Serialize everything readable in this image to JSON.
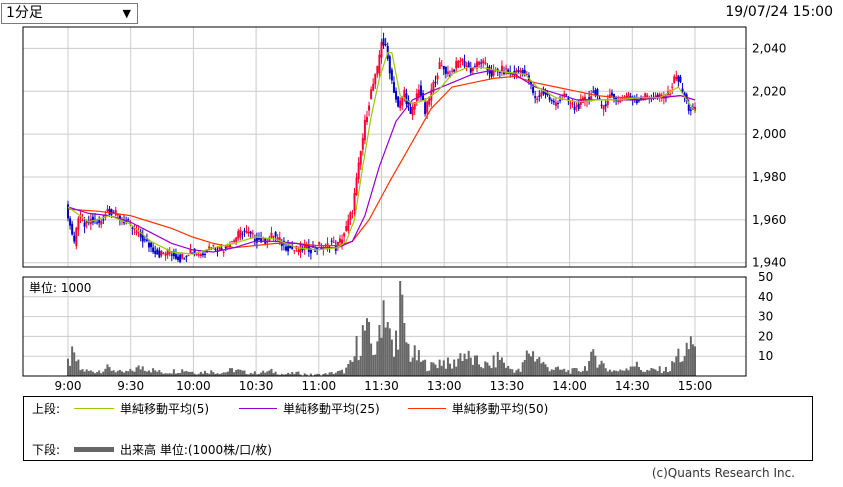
{
  "toolbar": {
    "interval_label": "1分足",
    "datetime": "19/07/24 15:00"
  },
  "legend": {
    "upper_prefix": "上段:",
    "lower_prefix": "下段:",
    "ma5_label": "単純移動平均(5)",
    "ma25_label": "単純移動平均(25)",
    "ma50_label": "単純移動平均(50)",
    "volume_label": "出来高 単位:(1000株/口/枚)"
  },
  "copyright": "(c)Quants Research Inc.",
  "colors": {
    "up": "#ff0033",
    "down": "#0000cc",
    "ma5": "#99cc00",
    "ma25": "#9900cc",
    "ma50": "#ff3300",
    "volume": "#666666",
    "grid": "#cccccc"
  },
  "chart_data": [
    {
      "type": "candlestick",
      "ylim": [
        1938,
        2050
      ],
      "yticks": [
        "2,040",
        "2,020",
        "2,000",
        "1,980",
        "1,960",
        "1,940"
      ],
      "ytick_values": [
        2040,
        2020,
        2000,
        1980,
        1960,
        1940
      ],
      "xticks": [
        "9:00",
        "9:30",
        "10:00",
        "10:30",
        "11:00",
        "11:30",
        "13:00",
        "13:30",
        "14:00",
        "14:30",
        "15:00"
      ],
      "price_path": [
        [
          0,
          1966
        ],
        [
          2,
          1958
        ],
        [
          4,
          1948
        ],
        [
          6,
          1962
        ],
        [
          9,
          1957
        ],
        [
          12,
          1960
        ],
        [
          16,
          1958
        ],
        [
          20,
          1965
        ],
        [
          25,
          1962
        ],
        [
          30,
          1958
        ],
        [
          35,
          1953
        ],
        [
          40,
          1948
        ],
        [
          45,
          1944
        ],
        [
          50,
          1945
        ],
        [
          55,
          1942
        ],
        [
          60,
          1946
        ],
        [
          65,
          1944
        ],
        [
          70,
          1948
        ],
        [
          75,
          1946
        ],
        [
          80,
          1950
        ],
        [
          85,
          1955
        ],
        [
          90,
          1952
        ],
        [
          95,
          1950
        ],
        [
          100,
          1953
        ],
        [
          105,
          1948
        ],
        [
          110,
          1946
        ],
        [
          115,
          1947
        ],
        [
          120,
          1946
        ],
        [
          122,
          1948
        ],
        [
          125,
          1947
        ],
        [
          128,
          1950
        ],
        [
          130,
          1947
        ],
        [
          132,
          1950
        ],
        [
          135,
          1956
        ],
        [
          138,
          1965
        ],
        [
          141,
          1985
        ],
        [
          144,
          2005
        ],
        [
          147,
          2020
        ],
        [
          150,
          2030
        ],
        [
          152,
          2044
        ],
        [
          154,
          2040
        ],
        [
          157,
          2025
        ],
        [
          160,
          2012
        ],
        [
          163,
          2020
        ],
        [
          166,
          2008
        ],
        [
          170,
          2022
        ],
        [
          173,
          2010
        ],
        [
          176,
          2020
        ],
        [
          180,
          2032
        ],
        [
          185,
          2028
        ],
        [
          190,
          2035
        ],
        [
          195,
          2030
        ],
        [
          200,
          2034
        ],
        [
          205,
          2028
        ],
        [
          210,
          2030
        ],
        [
          215,
          2028
        ],
        [
          220,
          2030
        ],
        [
          223,
          2025
        ],
        [
          226,
          2016
        ],
        [
          230,
          2020
        ],
        [
          235,
          2014
        ],
        [
          240,
          2018
        ],
        [
          245,
          2012
        ],
        [
          250,
          2016
        ],
        [
          255,
          2020
        ],
        [
          258,
          2012
        ],
        [
          262,
          2018
        ],
        [
          266,
          2016
        ],
        [
          270,
          2018
        ],
        [
          275,
          2016
        ],
        [
          280,
          2018
        ],
        [
          285,
          2017
        ],
        [
          290,
          2018
        ],
        [
          294,
          2028
        ],
        [
          297,
          2020
        ],
        [
          300,
          2012
        ],
        [
          302,
          2011
        ]
      ],
      "ma5_path": [
        [
          0,
          1966
        ],
        [
          10,
          1959
        ],
        [
          20,
          1962
        ],
        [
          30,
          1958
        ],
        [
          40,
          1950
        ],
        [
          50,
          1945
        ],
        [
          60,
          1944
        ],
        [
          70,
          1947
        ],
        [
          80,
          1949
        ],
        [
          90,
          1952
        ],
        [
          100,
          1951
        ],
        [
          110,
          1947
        ],
        [
          120,
          1946
        ],
        [
          130,
          1947
        ],
        [
          134,
          1950
        ],
        [
          138,
          1960
        ],
        [
          142,
          1985
        ],
        [
          146,
          2008
        ],
        [
          150,
          2026
        ],
        [
          154,
          2038
        ],
        [
          156,
          2038
        ],
        [
          160,
          2018
        ],
        [
          166,
          2014
        ],
        [
          172,
          2016
        ],
        [
          178,
          2020
        ],
        [
          185,
          2028
        ],
        [
          192,
          2031
        ],
        [
          200,
          2031
        ],
        [
          210,
          2029
        ],
        [
          220,
          2028
        ],
        [
          226,
          2022
        ],
        [
          235,
          2017
        ],
        [
          245,
          2015
        ],
        [
          255,
          2016
        ],
        [
          265,
          2016
        ],
        [
          275,
          2017
        ],
        [
          285,
          2017
        ],
        [
          294,
          2022
        ],
        [
          298,
          2016
        ],
        [
          302,
          2011
        ]
      ],
      "ma25_path": [
        [
          0,
          1966
        ],
        [
          10,
          1963
        ],
        [
          20,
          1962
        ],
        [
          30,
          1959
        ],
        [
          40,
          1954
        ],
        [
          50,
          1949
        ],
        [
          60,
          1946
        ],
        [
          70,
          1945
        ],
        [
          80,
          1947
        ],
        [
          90,
          1950
        ],
        [
          100,
          1950
        ],
        [
          110,
          1949
        ],
        [
          120,
          1947
        ],
        [
          130,
          1947
        ],
        [
          137,
          1950
        ],
        [
          143,
          1962
        ],
        [
          150,
          1985
        ],
        [
          158,
          2006
        ],
        [
          166,
          2016
        ],
        [
          175,
          2020
        ],
        [
          185,
          2024
        ],
        [
          195,
          2028
        ],
        [
          205,
          2030
        ],
        [
          215,
          2028
        ],
        [
          225,
          2022
        ],
        [
          235,
          2019
        ],
        [
          245,
          2016
        ],
        [
          255,
          2016
        ],
        [
          265,
          2016
        ],
        [
          275,
          2016
        ],
        [
          285,
          2017
        ],
        [
          295,
          2018
        ],
        [
          302,
          2016
        ]
      ],
      "ma50_path": [
        [
          0,
          1965
        ],
        [
          15,
          1964
        ],
        [
          30,
          1962
        ],
        [
          40,
          1959
        ],
        [
          50,
          1956
        ],
        [
          60,
          1952
        ],
        [
          70,
          1949
        ],
        [
          80,
          1947
        ],
        [
          90,
          1948
        ],
        [
          100,
          1949
        ],
        [
          110,
          1949
        ],
        [
          120,
          1948
        ],
        [
          130,
          1948
        ],
        [
          137,
          1950
        ],
        [
          145,
          1960
        ],
        [
          155,
          1978
        ],
        [
          165,
          1995
        ],
        [
          175,
          2012
        ],
        [
          185,
          2022
        ],
        [
          195,
          2024
        ],
        [
          205,
          2026
        ],
        [
          215,
          2027
        ],
        [
          225,
          2024
        ],
        [
          235,
          2022
        ],
        [
          245,
          2020
        ],
        [
          255,
          2018
        ],
        [
          265,
          2017
        ],
        [
          275,
          2017
        ],
        [
          285,
          2017
        ],
        [
          295,
          2018
        ],
        [
          302,
          2016
        ]
      ]
    },
    {
      "type": "bar",
      "title": "単位: 1000",
      "ylim": [
        0,
        50
      ],
      "yticks": [
        "50",
        "40",
        "30",
        "20",
        "10"
      ],
      "ytick_values": [
        50,
        40,
        30,
        20,
        10
      ],
      "volume_levels": [
        [
          0,
          8
        ],
        [
          2,
          12
        ],
        [
          4,
          10
        ],
        [
          6,
          4
        ],
        [
          10,
          3
        ],
        [
          14,
          3
        ],
        [
          18,
          5
        ],
        [
          22,
          4
        ],
        [
          26,
          2
        ],
        [
          30,
          3
        ],
        [
          36,
          6
        ],
        [
          40,
          4
        ],
        [
          46,
          2
        ],
        [
          50,
          3
        ],
        [
          56,
          4
        ],
        [
          62,
          2
        ],
        [
          68,
          3
        ],
        [
          74,
          2
        ],
        [
          80,
          4
        ],
        [
          86,
          2
        ],
        [
          92,
          2
        ],
        [
          98,
          3
        ],
        [
          104,
          1
        ],
        [
          110,
          2
        ],
        [
          116,
          1
        ],
        [
          122,
          1
        ],
        [
          128,
          2
        ],
        [
          133,
          3
        ],
        [
          137,
          8
        ],
        [
          140,
          22
        ],
        [
          143,
          28
        ],
        [
          146,
          20
        ],
        [
          149,
          15
        ],
        [
          151,
          46
        ],
        [
          153,
          48
        ],
        [
          155,
          24
        ],
        [
          157,
          12
        ],
        [
          160,
          48
        ],
        [
          162,
          25
        ],
        [
          165,
          14
        ],
        [
          168,
          12
        ],
        [
          171,
          8
        ],
        [
          175,
          6
        ],
        [
          180,
          10
        ],
        [
          185,
          6
        ],
        [
          190,
          15
        ],
        [
          194,
          10
        ],
        [
          198,
          8
        ],
        [
          203,
          6
        ],
        [
          208,
          12
        ],
        [
          212,
          5
        ],
        [
          218,
          3
        ],
        [
          222,
          16
        ],
        [
          226,
          12
        ],
        [
          230,
          6
        ],
        [
          236,
          4
        ],
        [
          242,
          3
        ],
        [
          248,
          4
        ],
        [
          254,
          13
        ],
        [
          260,
          4
        ],
        [
          266,
          3
        ],
        [
          272,
          8
        ],
        [
          278,
          3
        ],
        [
          284,
          4
        ],
        [
          290,
          4
        ],
        [
          294,
          14
        ],
        [
          297,
          10
        ],
        [
          300,
          22
        ]
      ]
    }
  ]
}
